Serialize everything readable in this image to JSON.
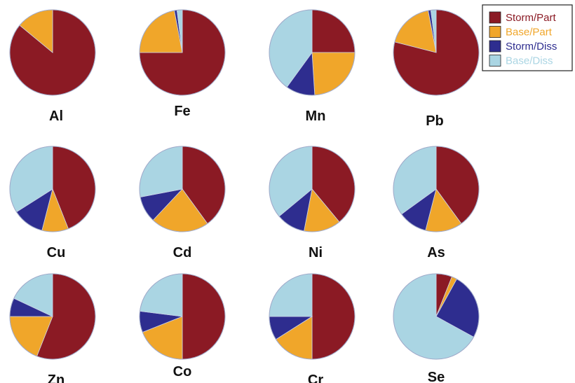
{
  "chart_data": {
    "type": "pie",
    "series_labels": [
      "Storm/Part",
      "Base/Part",
      "Storm/Diss",
      "Base/Diss"
    ],
    "colors": [
      "#8b1a24",
      "#f0a62a",
      "#2e2d8f",
      "#aad5e3"
    ],
    "legend": {
      "position": "top-right",
      "entries": [
        {
          "label": "Storm/Part",
          "color": "#8b1a24",
          "text_color": "#8b1a24"
        },
        {
          "label": "Base/Part",
          "color": "#f0a62a",
          "text_color": "#f0a62a"
        },
        {
          "label": "Storm/Diss",
          "color": "#2e2d8f",
          "text_color": "#2e2d8f"
        },
        {
          "label": "Base/Diss",
          "color": "#aad5e3",
          "text_color": "#aad5e3"
        }
      ]
    },
    "pies": [
      {
        "label": "Al",
        "values": [
          86,
          14,
          0,
          0
        ]
      },
      {
        "label": "Fe",
        "values": [
          75,
          22,
          1,
          2
        ]
      },
      {
        "label": "Mn",
        "values": [
          25,
          24,
          11,
          40
        ]
      },
      {
        "label": "Pb",
        "values": [
          79,
          18,
          1,
          2
        ]
      },
      {
        "label": "Cu",
        "values": [
          44,
          10,
          12,
          34
        ]
      },
      {
        "label": "Cd",
        "values": [
          40,
          22,
          10,
          28
        ]
      },
      {
        "label": "Ni",
        "values": [
          39,
          14,
          11,
          36
        ]
      },
      {
        "label": "As",
        "values": [
          40,
          14,
          11,
          35
        ]
      },
      {
        "label": "Zn",
        "values": [
          56,
          19,
          7,
          18
        ]
      },
      {
        "label": "Co",
        "values": [
          50,
          19,
          8,
          23
        ]
      },
      {
        "label": "Cr",
        "values": [
          50,
          16,
          9,
          25
        ]
      },
      {
        "label": "Se",
        "values": [
          6,
          2,
          25,
          67
        ]
      }
    ]
  }
}
